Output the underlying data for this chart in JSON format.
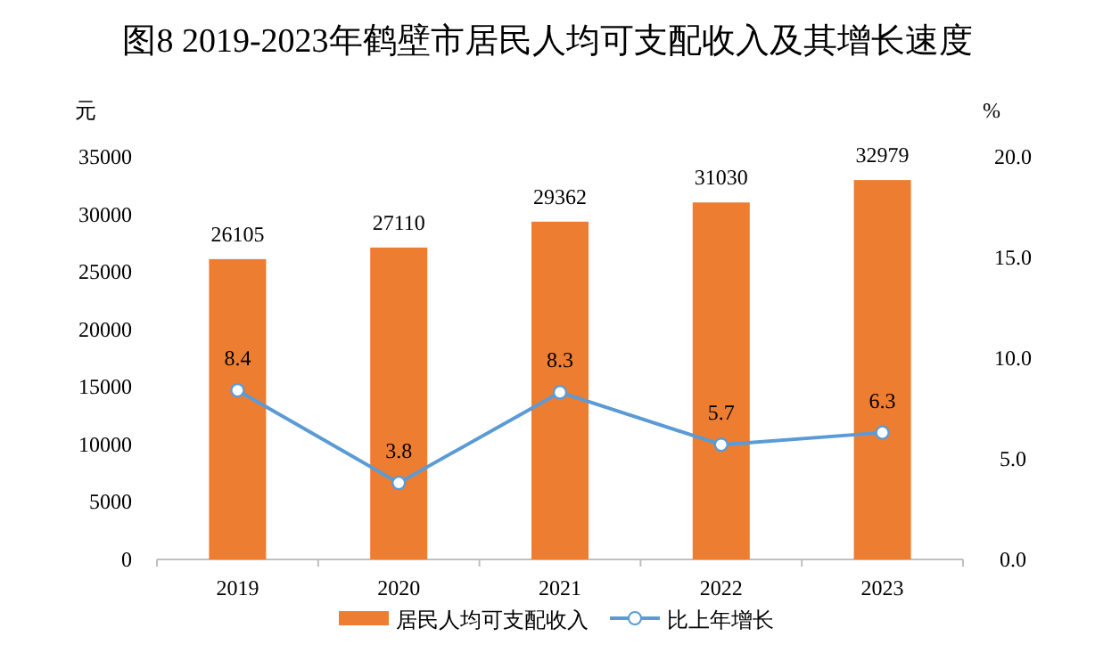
{
  "chart_data": {
    "type": "bar",
    "title": "图8  2019-2023年鹤壁市居民人均可支配收入及其增长速度",
    "categories": [
      "2019",
      "2020",
      "2021",
      "2022",
      "2023"
    ],
    "series": [
      {
        "name": "居民人均可支配收入",
        "color": "#ed7d31",
        "values": [
          26105,
          27110,
          29362,
          31030,
          32979
        ]
      },
      {
        "name": "比上年增长",
        "type": "line",
        "axis": "y2",
        "color": "#5b9bd5",
        "values": [
          8.4,
          3.8,
          8.3,
          5.7,
          6.3
        ]
      }
    ],
    "ylabel": "元",
    "y2label": "%",
    "ylim": [
      0,
      35000
    ],
    "yticks": [
      0,
      5000,
      10000,
      15000,
      20000,
      25000,
      30000,
      35000
    ],
    "y2lim": [
      0,
      20
    ],
    "y2ticks": [
      {
        "value": 0,
        "label": "0.0"
      },
      {
        "value": 5,
        "label": "5.0"
      },
      {
        "value": 10,
        "label": "10.0"
      },
      {
        "value": 15,
        "label": "15.0"
      },
      {
        "value": 20,
        "label": "20.0"
      }
    ],
    "data_labels": true,
    "legend": "bottom",
    "marker": "circle",
    "line_style": "solid",
    "grid": false
  }
}
